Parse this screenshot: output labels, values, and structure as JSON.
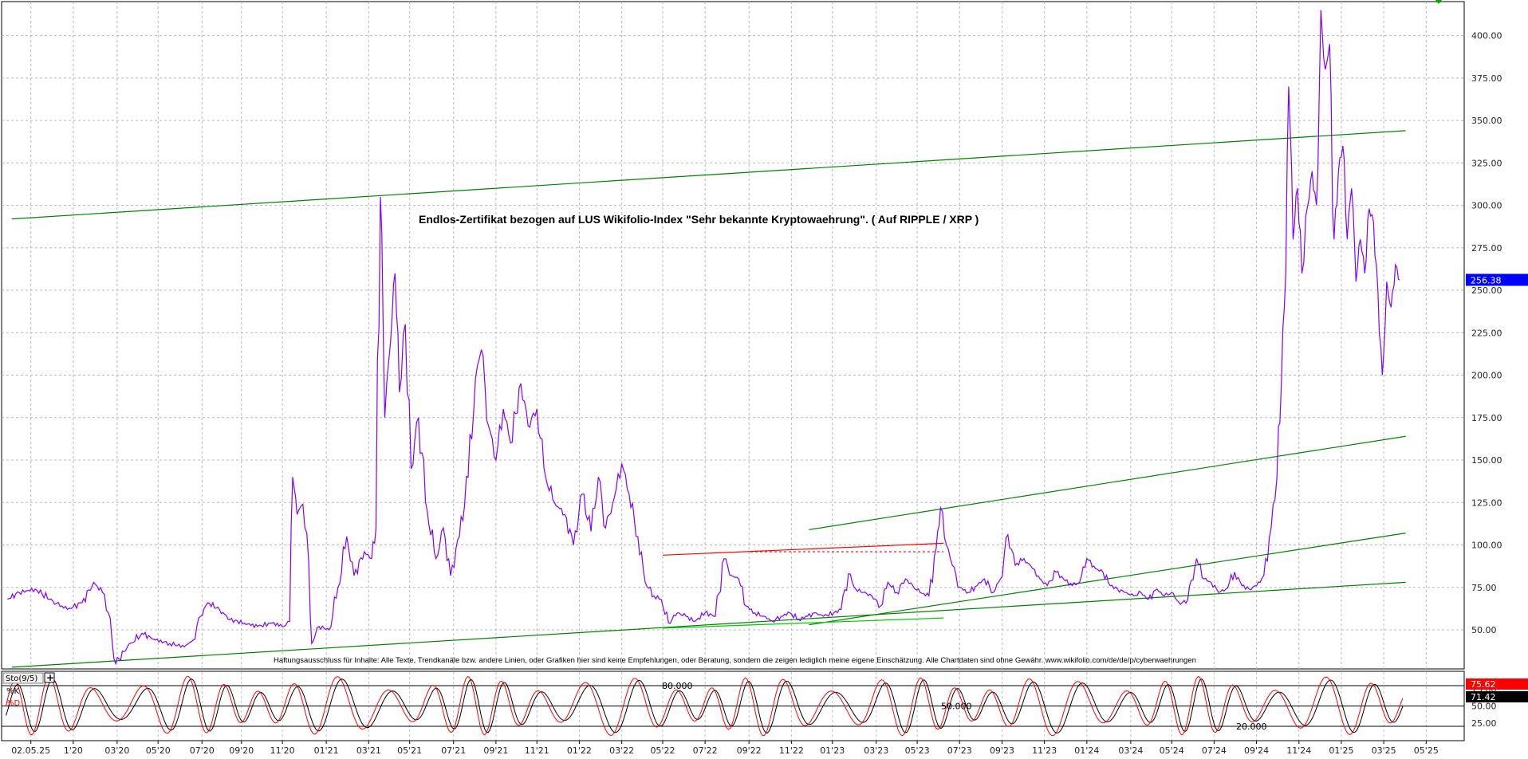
{
  "chart_data": {
    "type": "line",
    "title": "Endlos-Zertifikat bezogen auf LUS Wikifolio-Index \"Sehr bekannte Kryptowaehrung\". ( Auf RIPPLE / XRP )",
    "disclaimer": "Haftungsausschluss für Inhalte: Alle Texte, Trendkanäle bzw. andere Linien, oder Grafiken hier sind keine Empfehlungen, oder Beratung, sondern die zeigen lediglich meine eigene Einschätzung. Alle Chartdaten sind ohne Gewähr.  www.wikifolio.com/de/de/p/cyberwaehrungen",
    "x_range": [
      0,
      100
    ],
    "ylim": [
      27,
      420
    ],
    "y_ticks": [
      "400.00",
      "375.00",
      "350.00",
      "325.00",
      "300.00",
      "275.00",
      "250.00",
      "225.00",
      "200.00",
      "175.00",
      "150.00",
      "125.00",
      "100.00",
      "75.00",
      "50.00"
    ],
    "y_tick_values": [
      400,
      375,
      350,
      325,
      300,
      275,
      250,
      225,
      200,
      175,
      150,
      125,
      100,
      75,
      50
    ],
    "x_tick_labels": [
      "02.05.25",
      "1'20",
      "03'20",
      "05'20",
      "07'20",
      "09'20",
      "11'20",
      "01'21",
      "03'21",
      "05'21",
      "07'21",
      "09'21",
      "11'21",
      "01'22",
      "03'22",
      "05'22",
      "07'22",
      "09'22",
      "11'22",
      "01'23",
      "03'23",
      "05'23",
      "07'23",
      "09'23",
      "11'23",
      "01'24",
      "03'24",
      "05'24",
      "07'24",
      "09'24",
      "11'24",
      "01'25",
      "03'25",
      "05'25"
    ],
    "x_tick_positions": [
      2,
      4.9,
      7.9,
      10.7,
      13.7,
      16.4,
      19.2,
      22.2,
      25.1,
      27.9,
      30.9,
      33.8,
      36.6,
      39.5,
      42.4,
      45.2,
      48.1,
      51.1,
      54,
      56.8,
      59.8,
      62.6,
      65.5,
      68.4,
      71.3,
      74.2,
      77.2,
      80,
      82.9,
      85.8,
      88.7,
      91.6,
      94.5,
      97.4
    ],
    "current_value": {
      "label": "256.38",
      "value": 256.38,
      "color": "#0000ff"
    },
    "series": [
      {
        "color": "#8000ff",
        "points": [
          [
            0.4,
            68
          ],
          [
            1.2,
            72
          ],
          [
            2.3,
            74
          ],
          [
            3.5,
            67
          ],
          [
            4.5,
            62
          ],
          [
            5.5,
            66
          ],
          [
            6.3,
            78
          ],
          [
            6.9,
            72
          ],
          [
            7.3,
            60
          ],
          [
            7.8,
            30
          ],
          [
            8.6,
            40
          ],
          [
            9.6,
            48
          ],
          [
            10.5,
            44
          ],
          [
            11.5,
            42
          ],
          [
            12.5,
            40
          ],
          [
            13.1,
            44
          ],
          [
            13.6,
            58
          ],
          [
            14.1,
            66
          ],
          [
            14.9,
            62
          ],
          [
            15.6,
            56
          ],
          [
            16.6,
            54
          ],
          [
            17.5,
            52
          ],
          [
            18.5,
            54
          ],
          [
            19.3,
            52
          ],
          [
            19.7,
            55
          ],
          [
            19.9,
            140
          ],
          [
            20.2,
            118
          ],
          [
            20.6,
            124
          ],
          [
            21.0,
            90
          ],
          [
            21.2,
            42
          ],
          [
            21.7,
            52
          ],
          [
            22.4,
            50
          ],
          [
            23.0,
            75
          ],
          [
            23.6,
            105
          ],
          [
            24.1,
            82
          ],
          [
            24.8,
            96
          ],
          [
            25.3,
            92
          ],
          [
            25.6,
            110
          ],
          [
            25.9,
            305
          ],
          [
            26.2,
            175
          ],
          [
            26.6,
            220
          ],
          [
            26.9,
            260
          ],
          [
            27.2,
            190
          ],
          [
            27.6,
            230
          ],
          [
            28.0,
            145
          ],
          [
            28.5,
            175
          ],
          [
            29.1,
            120
          ],
          [
            29.7,
            92
          ],
          [
            30.2,
            110
          ],
          [
            30.7,
            82
          ],
          [
            31.3,
            105
          ],
          [
            31.9,
            140
          ],
          [
            32.4,
            198
          ],
          [
            32.8,
            215
          ],
          [
            33.3,
            170
          ],
          [
            33.8,
            150
          ],
          [
            34.3,
            180
          ],
          [
            34.8,
            160
          ],
          [
            35.5,
            195
          ],
          [
            36.0,
            170
          ],
          [
            36.6,
            180
          ],
          [
            37.2,
            140
          ],
          [
            37.8,
            125
          ],
          [
            38.5,
            118
          ],
          [
            39.1,
            100
          ],
          [
            39.7,
            130
          ],
          [
            40.3,
            108
          ],
          [
            40.8,
            140
          ],
          [
            41.3,
            110
          ],
          [
            41.9,
            128
          ],
          [
            42.4,
            148
          ],
          [
            42.9,
            130
          ],
          [
            43.5,
            105
          ],
          [
            44.0,
            78
          ],
          [
            44.6,
            70
          ],
          [
            45.1,
            68
          ],
          [
            45.6,
            54
          ],
          [
            46.2,
            60
          ],
          [
            46.8,
            58
          ],
          [
            47.4,
            55
          ],
          [
            48.1,
            60
          ],
          [
            48.8,
            58
          ],
          [
            49.4,
            92
          ],
          [
            49.9,
            82
          ],
          [
            50.4,
            80
          ],
          [
            50.9,
            64
          ],
          [
            51.5,
            60
          ],
          [
            52.1,
            58
          ],
          [
            52.7,
            55
          ],
          [
            53.3,
            58
          ],
          [
            53.9,
            60
          ],
          [
            54.5,
            56
          ],
          [
            55.1,
            58
          ],
          [
            55.7,
            60
          ],
          [
            56.2,
            58
          ],
          [
            56.9,
            60
          ],
          [
            57.4,
            62
          ],
          [
            57.9,
            83
          ],
          [
            58.4,
            74
          ],
          [
            58.9,
            72
          ],
          [
            59.5,
            70
          ],
          [
            60.1,
            64
          ],
          [
            60.6,
            78
          ],
          [
            61.2,
            72
          ],
          [
            61.8,
            80
          ],
          [
            62.3,
            76
          ],
          [
            62.8,
            72
          ],
          [
            63.4,
            70
          ],
          [
            63.9,
            98
          ],
          [
            64.2,
            122
          ],
          [
            64.6,
            100
          ],
          [
            65.0,
            88
          ],
          [
            65.5,
            75
          ],
          [
            66.1,
            72
          ],
          [
            66.7,
            76
          ],
          [
            67.2,
            80
          ],
          [
            67.8,
            72
          ],
          [
            68.3,
            80
          ],
          [
            68.8,
            106
          ],
          [
            69.3,
            88
          ],
          [
            69.9,
            92
          ],
          [
            70.5,
            86
          ],
          [
            71.0,
            80
          ],
          [
            71.5,
            76
          ],
          [
            72.1,
            84
          ],
          [
            72.6,
            80
          ],
          [
            73.2,
            76
          ],
          [
            73.7,
            78
          ],
          [
            74.2,
            92
          ],
          [
            74.8,
            86
          ],
          [
            75.3,
            84
          ],
          [
            75.8,
            76
          ],
          [
            76.3,
            74
          ],
          [
            76.8,
            72
          ],
          [
            77.4,
            70
          ],
          [
            77.9,
            72
          ],
          [
            78.4,
            68
          ],
          [
            79.0,
            74
          ],
          [
            79.5,
            70
          ],
          [
            80.0,
            72
          ],
          [
            80.6,
            65
          ],
          [
            81.1,
            68
          ],
          [
            81.7,
            92
          ],
          [
            82.2,
            80
          ],
          [
            82.7,
            78
          ],
          [
            83.2,
            72
          ],
          [
            83.7,
            74
          ],
          [
            84.3,
            84
          ],
          [
            84.8,
            76
          ],
          [
            85.3,
            74
          ],
          [
            85.8,
            76
          ],
          [
            86.3,
            82
          ],
          [
            86.8,
            110
          ],
          [
            87.2,
            140
          ],
          [
            87.5,
            196
          ],
          [
            87.8,
            260
          ],
          [
            88.0,
            370
          ],
          [
            88.3,
            280
          ],
          [
            88.6,
            310
          ],
          [
            88.9,
            260
          ],
          [
            89.3,
            300
          ],
          [
            89.6,
            320
          ],
          [
            89.9,
            300
          ],
          [
            90.2,
            415
          ],
          [
            90.5,
            380
          ],
          [
            90.8,
            395
          ],
          [
            91.1,
            280
          ],
          [
            91.4,
            320
          ],
          [
            91.7,
            335
          ],
          [
            92.0,
            280
          ],
          [
            92.3,
            310
          ],
          [
            92.6,
            255
          ],
          [
            92.9,
            280
          ],
          [
            93.2,
            260
          ],
          [
            93.5,
            298
          ],
          [
            93.8,
            290
          ],
          [
            94.1,
            250
          ],
          [
            94.4,
            200
          ],
          [
            94.7,
            255
          ],
          [
            95.0,
            240
          ],
          [
            95.3,
            265
          ],
          [
            95.6,
            256
          ]
        ]
      }
    ],
    "trend_lines": [
      {
        "color": "#008000",
        "from": [
          0.7,
          292
        ],
        "to": [
          96.0,
          344
        ]
      },
      {
        "color": "#008000",
        "from": [
          0.7,
          28
        ],
        "to": [
          96.0,
          78
        ]
      },
      {
        "color": "#008000",
        "from": [
          55.2,
          109
        ],
        "to": [
          96.0,
          164
        ]
      },
      {
        "color": "#008000",
        "from": [
          55.2,
          53
        ],
        "to": [
          96.0,
          107
        ]
      },
      {
        "color": "#ff0000",
        "from": [
          45.2,
          94
        ],
        "to": [
          64.4,
          101
        ]
      },
      {
        "color": "#ff0000",
        "dashed": true,
        "from": [
          51.2,
          96
        ],
        "to": [
          64.4,
          96
        ]
      },
      {
        "color": "#00cc00",
        "from": [
          45.2,
          51
        ],
        "to": [
          64.4,
          57
        ]
      }
    ],
    "stochastic": {
      "label": "Sto(9/5)",
      "k_label": "%K",
      "d_label": "%D",
      "ylim": [
        0,
        100
      ],
      "levels": [
        {
          "value": 80,
          "label": "80.000"
        },
        {
          "value": 50,
          "label": "50.000"
        },
        {
          "value": 20,
          "label": "20.000"
        }
      ],
      "y_ticks": [
        "75.00",
        "50.00",
        "25.00"
      ],
      "y_tick_values": [
        75,
        50,
        25
      ],
      "k_value": "75.62",
      "d_value": "71.42",
      "k_color": "#ff0000",
      "d_color": "#000000"
    }
  }
}
